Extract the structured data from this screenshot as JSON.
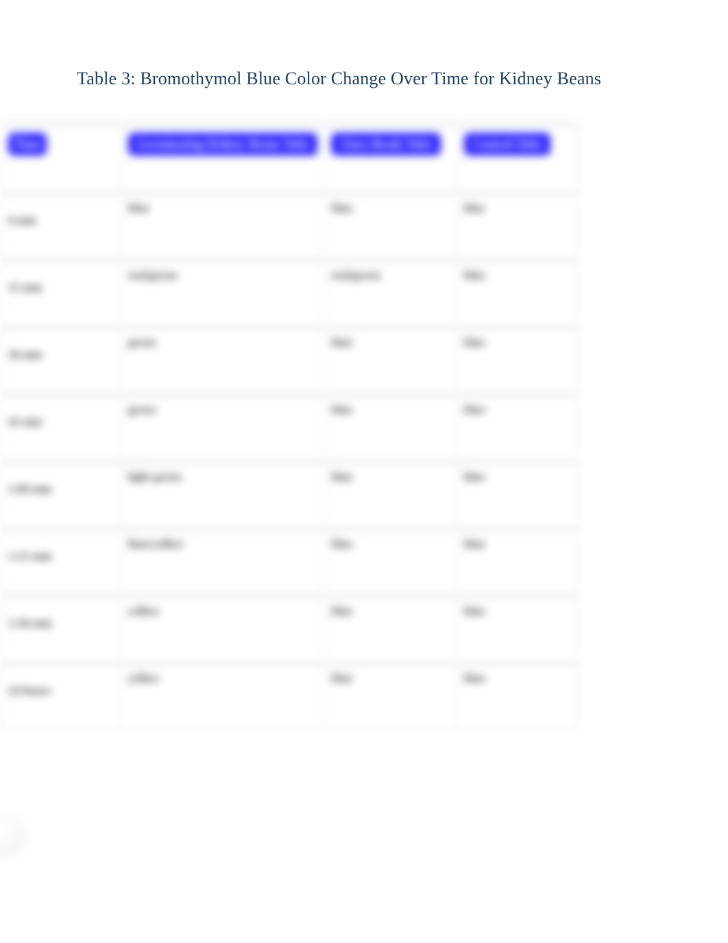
{
  "title": "Table 3: Bromothymol Blue Color Change Over Time for Kidney Beans",
  "table": {
    "columns": [
      {
        "label": "Time",
        "pill_color": "#2a21ff",
        "text_color": "#ffffff"
      },
      {
        "label": "Germinating Kidney Beans Tube",
        "pill_color": "#2a21ff",
        "text_color": "#ffffff"
      },
      {
        "label": "Glass Beads Tube",
        "pill_color": "#2a21ff",
        "text_color": "#ffffff"
      },
      {
        "label": "Control Tube",
        "pill_color": "#2a21ff",
        "text_color": "#ffffff"
      }
    ],
    "rows": [
      {
        "label": "0 min",
        "c1": "blue",
        "c2": "blue",
        "c3": "blue"
      },
      {
        "label": "15 min",
        "c1": "teal/green",
        "c2": "teal/green",
        "c3": "blue"
      },
      {
        "label": "30 min",
        "c1": "green",
        "c2": "blue",
        "c3": "blue"
      },
      {
        "label": "45 min",
        "c1": "green",
        "c2": "blue",
        "c3": "blue"
      },
      {
        "label": "1:00 min",
        "c1": "light green",
        "c2": "blue",
        "c3": "blue"
      },
      {
        "label": "1:15 min",
        "c1": "lime/yellow",
        "c2": "blue",
        "c3": "blue"
      },
      {
        "label": "1:30 min",
        "c1": "yellow",
        "c2": "blue",
        "c3": "blue"
      },
      {
        "label": "24 hours",
        "c1": "yellow",
        "c2": "blue",
        "c3": "blue"
      }
    ],
    "border_color": "#cfd4d8",
    "cell_bg": "#ffffff",
    "gap_bg": "#f6f6f6"
  },
  "colors": {
    "title_color": "#1a3d5c",
    "body_text": "#3b3b3b",
    "page_bg": "#ffffff"
  }
}
